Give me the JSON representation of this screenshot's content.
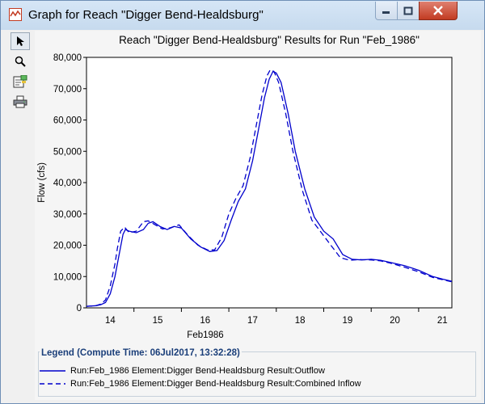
{
  "window": {
    "title": "Graph for Reach \"Digger Bend-Healdsburg\"",
    "icons": [
      "app-graph-icon",
      "minimize-icon",
      "maximize-icon",
      "close-icon"
    ]
  },
  "toolbar": {
    "tools": [
      {
        "name": "pointer-tool",
        "icon": "pointer-icon"
      },
      {
        "name": "zoom-tool",
        "icon": "magnifier-icon"
      },
      {
        "name": "properties-tool",
        "icon": "properties-icon"
      },
      {
        "name": "print-tool",
        "icon": "printer-icon"
      }
    ]
  },
  "chart_data": {
    "type": "line",
    "title": "Reach \"Digger Bend-Healdsburg\" Results for Run \"Feb_1986\"",
    "xlabel": "Feb1986",
    "ylabel": "Flow (cfs)",
    "xlim": [
      13.5,
      21.2
    ],
    "ylim": [
      0,
      80000
    ],
    "x_ticks": [
      "14",
      "15",
      "16",
      "17",
      "18",
      "19",
      "20",
      "21"
    ],
    "y_ticks": [
      "0",
      "10,000",
      "20,000",
      "30,000",
      "40,000",
      "50,000",
      "60,000",
      "70,000",
      "80,000"
    ],
    "grid": false,
    "series": [
      {
        "name": "Run:Feb_1986 Element:Digger Bend-Healdsburg Result:Outflow",
        "style": "solid",
        "color": "#0000cc",
        "x": [
          13.5,
          13.7,
          13.8,
          13.9,
          14.0,
          14.1,
          14.2,
          14.27,
          14.32,
          14.4,
          14.55,
          14.7,
          14.8,
          14.9,
          15.05,
          15.2,
          15.35,
          15.5,
          15.7,
          15.9,
          16.1,
          16.25,
          16.4,
          16.55,
          16.7,
          16.85,
          17.0,
          17.15,
          17.25,
          17.35,
          17.43,
          17.5,
          17.6,
          17.75,
          17.9,
          18.1,
          18.3,
          18.5,
          18.7,
          18.9,
          19.1,
          19.3,
          19.5,
          19.7,
          19.9,
          20.2,
          20.5,
          20.8,
          21.0,
          21.2
        ],
        "y": [
          500,
          700,
          1000,
          1700,
          4500,
          10000,
          18000,
          23500,
          25000,
          24500,
          24000,
          25000,
          27000,
          27500,
          26000,
          25000,
          26000,
          25500,
          22000,
          19500,
          18000,
          18300,
          21500,
          28000,
          34000,
          38000,
          47000,
          59000,
          67000,
          73000,
          75500,
          75000,
          72000,
          62000,
          50000,
          38000,
          29000,
          24500,
          22000,
          17000,
          15500,
          15300,
          15500,
          15200,
          14500,
          13500,
          12000,
          10000,
          9200,
          8500
        ]
      },
      {
        "name": "Run:Feb_1986 Element:Digger Bend-Healdsburg Result:Combined Inflow",
        "style": "dashed",
        "color": "#0000cc",
        "x": [
          13.5,
          13.7,
          13.8,
          13.9,
          14.0,
          14.1,
          14.15,
          14.22,
          14.3,
          14.4,
          14.55,
          14.7,
          14.8,
          14.95,
          15.1,
          15.25,
          15.45,
          15.65,
          15.85,
          16.05,
          16.2,
          16.35,
          16.5,
          16.65,
          16.8,
          16.95,
          17.1,
          17.2,
          17.3,
          17.37,
          17.45,
          17.55,
          17.7,
          17.85,
          18.05,
          18.25,
          18.45,
          18.65,
          18.85,
          19.05,
          19.25,
          19.5,
          19.7,
          19.9,
          20.2,
          20.5,
          20.8,
          21.0,
          21.2
        ],
        "y": [
          500,
          700,
          1200,
          2500,
          7000,
          14000,
          19000,
          24500,
          25800,
          24000,
          24500,
          27500,
          27800,
          26500,
          25200,
          25500,
          26500,
          23000,
          20000,
          18500,
          18500,
          22500,
          30000,
          35000,
          39000,
          48000,
          60000,
          68000,
          74000,
          76000,
          75500,
          72000,
          62000,
          50000,
          37500,
          28000,
          24000,
          20000,
          16000,
          15200,
          15400,
          15300,
          15000,
          14300,
          13000,
          11500,
          9700,
          9000,
          8300
        ]
      }
    ]
  },
  "legend": {
    "title": "Legend (Compute Time: 06Jul2017, 13:32:28)"
  }
}
